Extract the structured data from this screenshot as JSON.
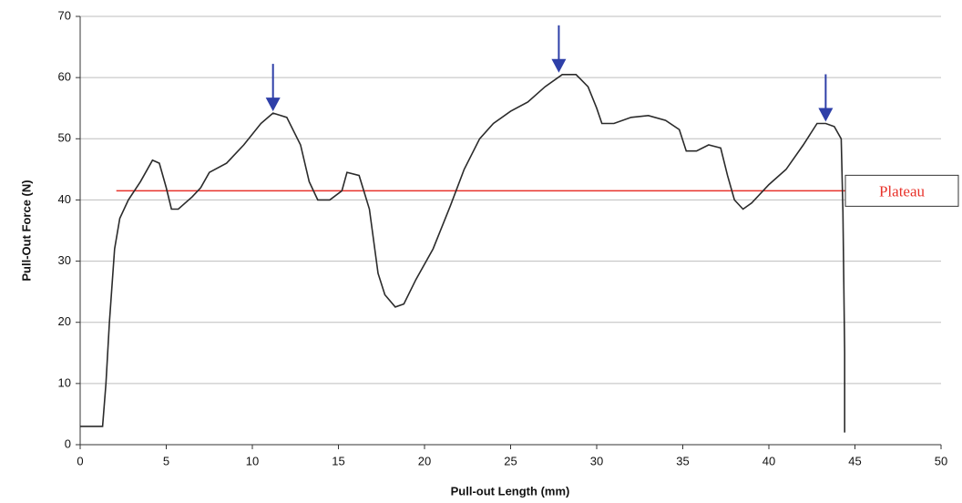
{
  "chart_data": {
    "type": "line",
    "x_label": "Pull-out Length (mm)",
    "y_label": "Pull-Out Force (N)",
    "xlim": [
      0,
      50
    ],
    "xticks": [
      0,
      5,
      10,
      15,
      20,
      25,
      30,
      35,
      40,
      45,
      50
    ],
    "ylim": [
      0,
      70
    ],
    "yticks": [
      0,
      10,
      20,
      30,
      40,
      50,
      60,
      70
    ],
    "grid": true,
    "series": [
      {
        "color": "#2b2b2b",
        "x": [
          0,
          1.3,
          1.5,
          1.7,
          2.0,
          2.3,
          2.8,
          3.5,
          4.2,
          4.6,
          5.0,
          5.3,
          5.7,
          6.5,
          7,
          7.5,
          8.5,
          9.5,
          10.5,
          11.2,
          12,
          12.8,
          13.3,
          13.8,
          14.5,
          15.2,
          15.5,
          16.2,
          16.8,
          17.3,
          17.7,
          18.3,
          18.8,
          19.5,
          20.5,
          21.5,
          22.3,
          23.2,
          24,
          25,
          26,
          27,
          28,
          28.8,
          29.5,
          30,
          30.3,
          31,
          32,
          33,
          34,
          34.8,
          35.2,
          35.8,
          36.5,
          37.2,
          37.6,
          38,
          38.5,
          39,
          40,
          41,
          42,
          42.8,
          43.3,
          43.8,
          44.2,
          44.3,
          44.4,
          44.4
        ],
        "values": [
          3,
          3,
          10,
          20,
          32,
          37,
          40,
          43,
          46.5,
          46,
          42,
          38.5,
          38.5,
          40.5,
          42,
          44.5,
          46,
          49,
          52.5,
          54.2,
          53.5,
          49,
          43,
          40,
          40,
          41.5,
          44.5,
          44,
          38.5,
          28,
          24.5,
          22.5,
          23,
          27,
          32,
          39,
          45,
          50,
          52.5,
          54.5,
          56,
          58.5,
          60.5,
          60.5,
          58.5,
          55,
          52.5,
          52.5,
          53.5,
          53.8,
          53,
          51.5,
          48,
          48,
          49,
          48.5,
          44,
          40,
          38.5,
          39.5,
          42.5,
          45,
          49,
          52.5,
          52.5,
          52,
          50,
          38,
          15,
          2
        ]
      }
    ],
    "plateau": {
      "label": "Plateau",
      "value": 41.5,
      "color": "#e8322a"
    },
    "peak_markers": {
      "color": "#2e3fa8",
      "x": [
        11.2,
        27.8,
        43.3
      ],
      "y": [
        54.2,
        60.5,
        52.5
      ]
    }
  }
}
